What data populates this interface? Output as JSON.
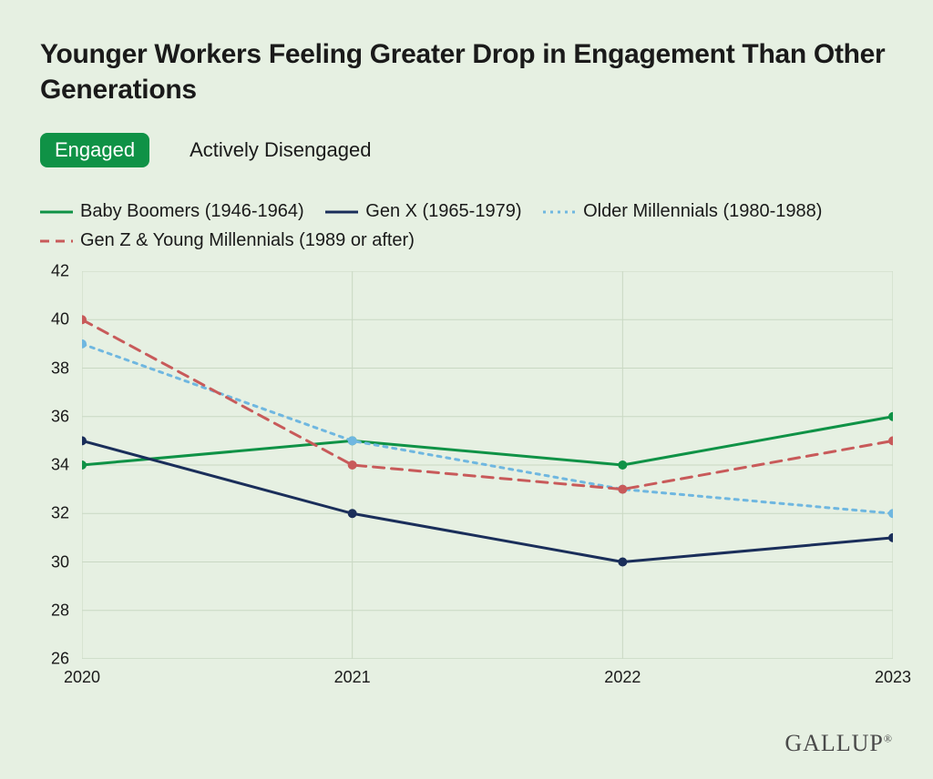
{
  "title": "Younger Workers Feeling Greater Drop in Engagement Than Other Generations",
  "tabs": {
    "active": "Engaged",
    "inactive": "Actively Disengaged"
  },
  "chart": {
    "type": "line",
    "background_color": "#e6f0e2",
    "grid_color": "#c9d8c3",
    "axis_color": "#c9d8c3",
    "label_fontsize": 18,
    "title_fontsize": 30,
    "x": {
      "categories": [
        "2020",
        "2021",
        "2022",
        "2023"
      ]
    },
    "y": {
      "min": 26,
      "max": 42,
      "ticks": [
        26,
        28,
        30,
        32,
        34,
        36,
        38,
        40,
        42
      ]
    },
    "series": [
      {
        "key": "boomers",
        "label": "Baby Boomers (1946-1964)",
        "color": "#0f9246",
        "dash": "solid",
        "line_width": 3,
        "marker": "circle",
        "marker_size": 5,
        "values": [
          34,
          35,
          34,
          36
        ]
      },
      {
        "key": "genx",
        "label": "Gen X (1965-1979)",
        "color": "#1a2e5a",
        "dash": "solid",
        "line_width": 3,
        "marker": "circle",
        "marker_size": 5,
        "values": [
          35,
          32,
          30,
          31
        ]
      },
      {
        "key": "older_millennials",
        "label": "Older Millennials (1980-1988)",
        "color": "#6fb7e0",
        "dash": "dot",
        "line_width": 3,
        "marker": "circle",
        "marker_size": 5,
        "values": [
          39,
          35,
          33,
          32
        ]
      },
      {
        "key": "genz",
        "label": "Gen Z & Young Millennials (1989 or after)",
        "color": "#c85a5a",
        "dash": "dash",
        "line_width": 3,
        "marker": "circle",
        "marker_size": 5,
        "values": [
          40,
          34,
          33,
          35
        ]
      }
    ]
  },
  "attribution": "GALLUP"
}
